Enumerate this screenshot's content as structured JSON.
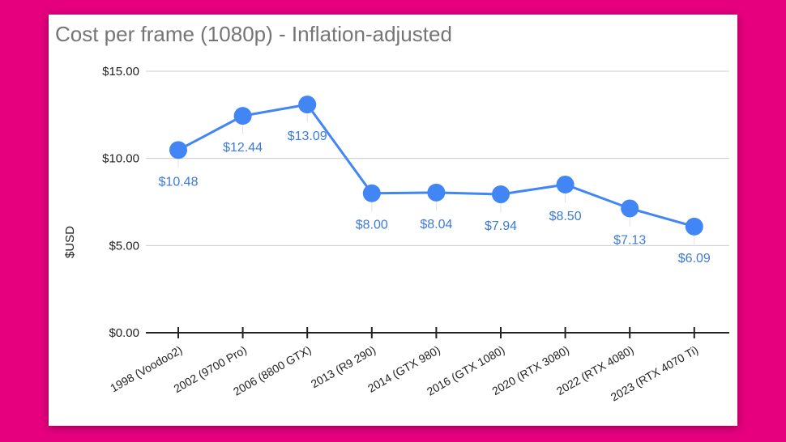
{
  "chart_data": {
    "type": "line",
    "title": "Cost per frame (1080p) - Inflation-adjusted",
    "xlabel": "",
    "ylabel": "$USD",
    "ylim": [
      0,
      15
    ],
    "yticks": [
      0,
      5,
      10,
      15
    ],
    "ytick_labels": [
      "$0.00",
      "$5.00",
      "$10.00",
      "$15.00"
    ],
    "grid": true,
    "legend": "none",
    "categories": [
      "1998 (Voodoo2)",
      "2002 (9700 Pro)",
      "2006 (8800 GTX)",
      "2013 (R9 290)",
      "2014 (GTX 980)",
      "2016 (GTX 1080)",
      "2020 (RTX 3080)",
      "2022 (RTX 4080)",
      "2023 (RTX 4070 Ti)"
    ],
    "series": [
      {
        "values": [
          10.48,
          12.44,
          13.09,
          8.0,
          8.04,
          7.94,
          8.5,
          7.13,
          6.09
        ],
        "labels": [
          "$10.48",
          "$12.44",
          "$13.09",
          "$8.00",
          "$8.04",
          "$7.94",
          "$8.50",
          "$7.13",
          "$6.09"
        ],
        "color": "#4285f4"
      }
    ],
    "colors": {
      "line": "#4285f4",
      "label": "#3d7bd8",
      "grid": "#cccccc",
      "axis": "#222222"
    }
  }
}
